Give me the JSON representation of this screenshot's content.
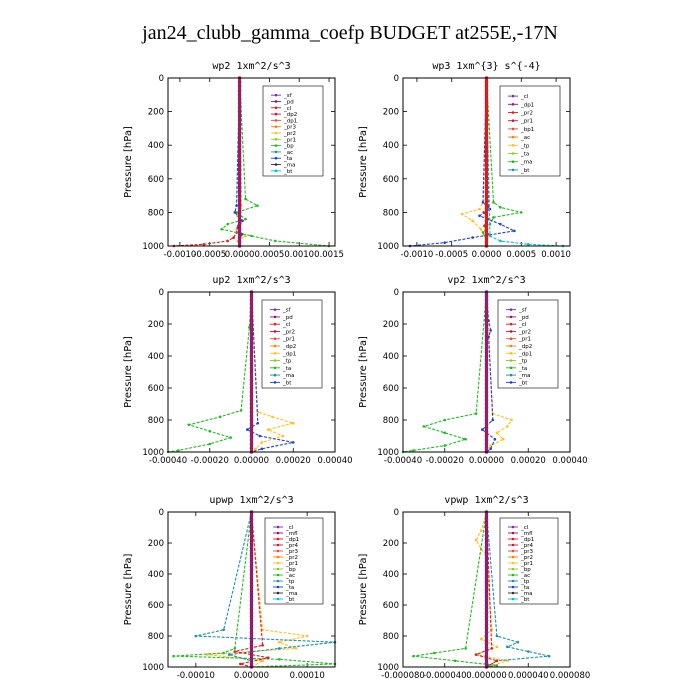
{
  "figure_title": "jan24_clubb_gamma_coefp  BUDGET at255E,-17N",
  "chart_data": [
    {
      "type": "line",
      "title": "wp2  1xm^2/s^3",
      "ylabel": "Pressure [hPa]",
      "ylim": [
        1000,
        0
      ],
      "yticks": [
        "0",
        "200",
        "400",
        "600",
        "800",
        "1000"
      ],
      "xlim": [
        -0.0012,
        0.0016
      ],
      "xticks": [
        {
          "v": -0.001,
          "label": "-0.0010"
        },
        {
          "v": -0.0005,
          "label": "-0.0005"
        },
        {
          "v": 0.0,
          "label": "0.0000"
        },
        {
          "v": 0.0005,
          "label": "0.0005"
        },
        {
          "v": 0.001,
          "label": "0.0010"
        },
        {
          "v": 0.0015,
          "label": "0.0015"
        }
      ],
      "legend": [
        "_sf",
        "_pd",
        "_cl",
        "_dp2",
        "_dp1",
        "_pr3",
        "_pr2",
        "_pr1",
        "_bp",
        "_ac",
        "_ta",
        "_ma",
        "_bt"
      ],
      "series": [
        {
          "name": "_sf",
          "color": "#7b2ca8",
          "marker": "dot",
          "y": [
            0,
            740,
            780,
            830,
            870,
            910,
            950,
            980,
            1000
          ],
          "x": [
            0,
            0,
            0,
            0,
            0,
            0,
            0,
            0,
            0
          ]
        },
        {
          "name": "_dp1",
          "color": "#e31a1c",
          "marker": "dot",
          "y": [
            0,
            740,
            840,
            880,
            920,
            950,
            970,
            990,
            1000
          ],
          "x": [
            0,
            0,
            0,
            -2e-05,
            -5e-05,
            -0.0001,
            -0.0002,
            -0.0006,
            -0.0011
          ]
        },
        {
          "name": "_pr1",
          "color": "#ffc020",
          "marker": "dot",
          "y": [
            0,
            760,
            820,
            860,
            900,
            940,
            970,
            1000
          ],
          "x": [
            0,
            3e-05,
            -4e-05,
            2e-05,
            -5e-05,
            0.0001,
            -3e-05,
            0.0
          ]
        },
        {
          "name": "_bp",
          "color": "#22bb22",
          "marker": "dot",
          "y": [
            0,
            720,
            760,
            800,
            840,
            870,
            900,
            940,
            970,
            1000
          ],
          "x": [
            0,
            0.0001,
            0.0003,
            -5e-05,
            0.0001,
            -0.0002,
            -0.0003,
            0.0002,
            0.0006,
            0.0015
          ]
        },
        {
          "name": "_ta",
          "color": "#2040d0",
          "marker": "dot",
          "y": [
            0,
            760,
            800,
            850,
            890,
            930,
            960,
            1000
          ],
          "x": [
            0,
            -5e-05,
            -8e-05,
            5e-05,
            -3e-05,
            4e-05,
            0.0,
            0.0
          ]
        }
      ]
    },
    {
      "type": "line",
      "title": "wp3  1xm^{3} s^{-4}",
      "ylabel": "Pressure [hPa]",
      "ylim": [
        1000,
        0
      ],
      "yticks": [
        "0",
        "200",
        "400",
        "600",
        "800",
        "1000"
      ],
      "xlim": [
        -0.0012,
        0.0012
      ],
      "xticks": [
        {
          "v": -0.001,
          "label": "-0.0010"
        },
        {
          "v": -0.0005,
          "label": "-0.0005"
        },
        {
          "v": 0.0,
          "label": "0.0000"
        },
        {
          "v": 0.0005,
          "label": "0.0005"
        },
        {
          "v": 0.001,
          "label": "0.0010"
        }
      ],
      "legend": [
        "_cl",
        "_dp1",
        "_pr2",
        "_pr1",
        "_bp1",
        "_ac",
        "_tp",
        "_ta",
        "_ma",
        "_bt"
      ],
      "series": [
        {
          "name": "_cl",
          "color": "#e31a1c",
          "marker": "dot",
          "y": [
            0,
            760,
            800,
            840,
            880,
            930,
            970,
            1000
          ],
          "x": [
            0,
            3e-05,
            -4e-05,
            2e-05,
            -3e-05,
            2e-05,
            0.0,
            0.0
          ]
        },
        {
          "name": "_pr1",
          "color": "#ffc020",
          "marker": "dot",
          "y": [
            0,
            740,
            780,
            810,
            850,
            900,
            960,
            1000
          ],
          "x": [
            0,
            -5e-05,
            -0.0001,
            -0.00035,
            -0.0002,
            -8e-05,
            0.0,
            0.0
          ]
        },
        {
          "name": "_bp1",
          "color": "#22bb22",
          "marker": "dot",
          "y": [
            0,
            740,
            770,
            800,
            830,
            870,
            920,
            970,
            1000
          ],
          "x": [
            0,
            0.0001,
            0.0002,
            0.0005,
            0.0001,
            5e-05,
            -5e-05,
            0.0,
            0.0
          ]
        },
        {
          "name": "_ta",
          "color": "#2040d0",
          "marker": "dot",
          "y": [
            0,
            740,
            780,
            820,
            870,
            910,
            950,
            980,
            1000
          ],
          "x": [
            0,
            -5e-05,
            5e-05,
            -0.0001,
            0.0002,
            0.0004,
            -0.0002,
            -0.0006,
            -0.0011
          ]
        },
        {
          "name": "_bt",
          "color": "#00c0d0",
          "marker": "dot",
          "y": [
            0,
            940,
            970,
            990,
            1000
          ],
          "x": [
            0,
            5e-05,
            0.0002,
            0.0006,
            0.0011
          ]
        },
        {
          "name": "_dp1",
          "color": "#c41a3a",
          "marker": "dot",
          "y": [
            0,
            1000
          ],
          "x": [
            0,
            0
          ]
        }
      ]
    },
    {
      "type": "line",
      "title": "up2  1xm^2/s^3",
      "ylabel": "Pressure [hPa]",
      "ylim": [
        1000,
        0
      ],
      "yticks": [
        "0",
        "200",
        "400",
        "600",
        "800",
        "1000"
      ],
      "xlim": [
        -0.0004,
        0.0004
      ],
      "xticks": [
        {
          "v": -0.0004,
          "label": "-0.00040"
        },
        {
          "v": -0.0002,
          "label": "-0.00020"
        },
        {
          "v": 0.0,
          "label": "0.00000"
        },
        {
          "v": 0.0002,
          "label": "0.00020"
        },
        {
          "v": 0.0004,
          "label": "0.00040"
        }
      ],
      "legend": [
        "_sf",
        "_pd",
        "_cl",
        "_pr2",
        "_pr1",
        "_dp2",
        "_dp1",
        "_tp",
        "_ta",
        "_ma",
        "_bt"
      ],
      "series": [
        {
          "name": "_sf",
          "color": "#e31a1c",
          "marker": "dot",
          "y": [
            0,
            1000
          ],
          "x": [
            0,
            0
          ]
        },
        {
          "name": "_pr1",
          "color": "#ffc020",
          "marker": "dot",
          "y": [
            0,
            750,
            780,
            820,
            860,
            900,
            940,
            980,
            1000
          ],
          "x": [
            0,
            3e-05,
            0.0001,
            0.0002,
            8e-05,
            0.00015,
            5e-05,
            2e-05,
            0
          ]
        },
        {
          "name": "_dp1",
          "color": "#22bb22",
          "marker": "dot",
          "y": [
            0,
            220,
            740,
            780,
            830,
            870,
            910,
            950,
            990,
            1000
          ],
          "x": [
            0,
            -1e-05,
            -5e-05,
            -0.00015,
            -0.0003,
            -0.0002,
            -0.0001,
            -0.0002,
            -0.00035,
            -0.0004
          ]
        },
        {
          "name": "_ta",
          "color": "#2040d0",
          "marker": "dot",
          "y": [
            0,
            820,
            860,
            900,
            940,
            980,
            1000
          ],
          "x": [
            0,
            3e-05,
            -2e-05,
            4e-05,
            0.0002,
            5e-05,
            0
          ]
        }
      ]
    },
    {
      "type": "line",
      "title": "vp2  1xm^2/s^3",
      "ylabel": "Pressure [hPa]",
      "ylim": [
        1000,
        0
      ],
      "yticks": [
        "0",
        "200",
        "400",
        "600",
        "800",
        "1000"
      ],
      "xlim": [
        -0.0004,
        0.0004
      ],
      "xticks": [
        {
          "v": -0.0004,
          "label": "-0.00040"
        },
        {
          "v": -0.0002,
          "label": "-0.00020"
        },
        {
          "v": 0.0,
          "label": "0.00000"
        },
        {
          "v": 0.0002,
          "label": "0.00020"
        },
        {
          "v": 0.0004,
          "label": "0.00040"
        }
      ],
      "legend": [
        "_sf",
        "_pd",
        "_cl",
        "_pr2",
        "_pr1",
        "_dp2",
        "_dp1",
        "_tp",
        "_ta",
        "_ma",
        "_bt"
      ],
      "series": [
        {
          "name": "_sf",
          "color": "#e31a1c",
          "marker": "dot",
          "y": [
            0,
            1000
          ],
          "x": [
            0,
            0
          ]
        },
        {
          "name": "_pr1",
          "color": "#ffc020",
          "marker": "dot",
          "y": [
            0,
            760,
            800,
            840,
            880,
            920,
            960,
            1000
          ],
          "x": [
            0,
            3e-05,
            0.00012,
            0.0001,
            5e-05,
            8e-05,
            2e-05,
            0
          ]
        },
        {
          "name": "_dp1",
          "color": "#22bb22",
          "marker": "dot",
          "y": [
            0,
            760,
            800,
            840,
            880,
            920,
            960,
            990,
            1000
          ],
          "x": [
            0,
            -5e-05,
            -0.0002,
            -0.0003,
            -0.0002,
            -0.0001,
            -0.0002,
            -0.00035,
            -0.0004
          ]
        },
        {
          "name": "_ta",
          "color": "#2040d0",
          "marker": "dot",
          "y": [
            0,
            180,
            240,
            280,
            800,
            860,
            920,
            980,
            1000
          ],
          "x": [
            0,
            1e-05,
            2e-05,
            1e-05,
            3e-05,
            -2e-05,
            4e-05,
            2e-05,
            0
          ]
        }
      ]
    },
    {
      "type": "line",
      "title": "upwp  1xm^2/s^3",
      "ylabel": "Pressure [hPa]",
      "ylim": [
        1000,
        0
      ],
      "yticks": [
        "0",
        "200",
        "400",
        "600",
        "800",
        "1000"
      ],
      "xlim": [
        -0.00015,
        0.00015
      ],
      "xticks": [
        {
          "v": -0.0001,
          "label": "-0.00010"
        },
        {
          "v": 0.0,
          "label": "0.00000"
        },
        {
          "v": 0.0001,
          "label": "0.00010"
        }
      ],
      "legend": [
        "_cl",
        "_mfl",
        "_dp1",
        "_pr4",
        "_pr3",
        "_pr2",
        "_pr1",
        "_bp",
        "_ac",
        "_tp",
        "_ta",
        "_ma",
        "_bt"
      ],
      "series": [
        {
          "name": "_cl",
          "color": "#7b2ca8",
          "marker": "dot",
          "y": [
            0,
            1000
          ],
          "x": [
            0,
            0
          ]
        },
        {
          "name": "_pr1",
          "color": "#ffc020",
          "marker": "dot",
          "y": [
            0,
            760,
            800,
            840,
            880,
            920,
            960,
            1000
          ],
          "x": [
            0,
            2e-05,
            0.0001,
            5e-05,
            8e-05,
            -8e-05,
            2e-05,
            0.0
          ]
        },
        {
          "name": "_bp",
          "color": "#22bb22",
          "marker": "dot",
          "y": [
            0,
            880,
            910,
            930,
            950,
            980,
            1000
          ],
          "x": [
            0,
            -3e-05,
            -5e-05,
            -0.00014,
            5e-05,
            0.00015,
            0.0
          ]
        },
        {
          "name": "_ac",
          "color": "#1a8fb0",
          "marker": "dot",
          "y": [
            0,
            760,
            800,
            840,
            880,
            920,
            960,
            1000
          ],
          "x": [
            0,
            -5e-05,
            -0.0001,
            0.00015,
            5e-05,
            -4e-05,
            0.0,
            0.0
          ]
        },
        {
          "name": "_dp1",
          "color": "#e31a1c",
          "marker": "dot",
          "y": [
            0,
            860,
            900,
            940,
            980,
            1000
          ],
          "x": [
            0,
            2e-05,
            -3e-05,
            3e-05,
            -2e-05,
            0.0
          ]
        }
      ]
    },
    {
      "type": "line",
      "title": "vpwp  1xm^2/s^3",
      "ylabel": "Pressure [hPa]",
      "ylim": [
        1000,
        0
      ],
      "yticks": [
        "0",
        "200",
        "400",
        "600",
        "800",
        "1000"
      ],
      "xlim": [
        -8e-05,
        8e-05
      ],
      "xticks": [
        {
          "v": -8e-05,
          "label": "-0.000080"
        },
        {
          "v": -4e-05,
          "label": "-0.000040"
        },
        {
          "v": 0.0,
          "label": "0.000000"
        },
        {
          "v": 4e-05,
          "label": "0.000040"
        },
        {
          "v": 8e-05,
          "label": "0.000080"
        }
      ],
      "legend": [
        "_cl",
        "_mfl",
        "_dp1",
        "_pr4",
        "_pr3",
        "_pr2",
        "_pr1",
        "_bp",
        "_ac",
        "_tp",
        "_ta",
        "_ma",
        "_bt"
      ],
      "series": [
        {
          "name": "_cl",
          "color": "#7b2ca8",
          "marker": "dot",
          "y": [
            0,
            1000
          ],
          "x": [
            0,
            0
          ]
        },
        {
          "name": "_pr1",
          "color": "#ffc020",
          "marker": "dot",
          "y": [
            0,
            120,
            180,
            240,
            280,
            760,
            820,
            870,
            920,
            960,
            1000
          ],
          "x": [
            0,
            -5e-06,
            -1e-05,
            -5e-06,
            0.0,
            5e-06,
            -5e-06,
            1e-05,
            -1e-05,
            2e-05,
            0.0
          ]
        },
        {
          "name": "_bp",
          "color": "#22bb22",
          "marker": "dot",
          "y": [
            0,
            880,
            910,
            930,
            960,
            990,
            1000
          ],
          "x": [
            0,
            -2e-05,
            -5e-05,
            -7e-05,
            -3e-05,
            1e-05,
            0.0
          ]
        },
        {
          "name": "_ac",
          "color": "#1a8fb0",
          "marker": "dot",
          "y": [
            0,
            800,
            840,
            870,
            900,
            930,
            960,
            1000
          ],
          "x": [
            0,
            1e-05,
            3e-05,
            2e-05,
            4e-05,
            6e-05,
            1e-05,
            0.0
          ]
        },
        {
          "name": "_dp1",
          "color": "#e31a1c",
          "marker": "dot",
          "y": [
            0,
            880,
            920,
            960,
            1000
          ],
          "x": [
            0,
            5e-06,
            -1e-05,
            1e-05,
            0.0
          ]
        }
      ]
    }
  ]
}
